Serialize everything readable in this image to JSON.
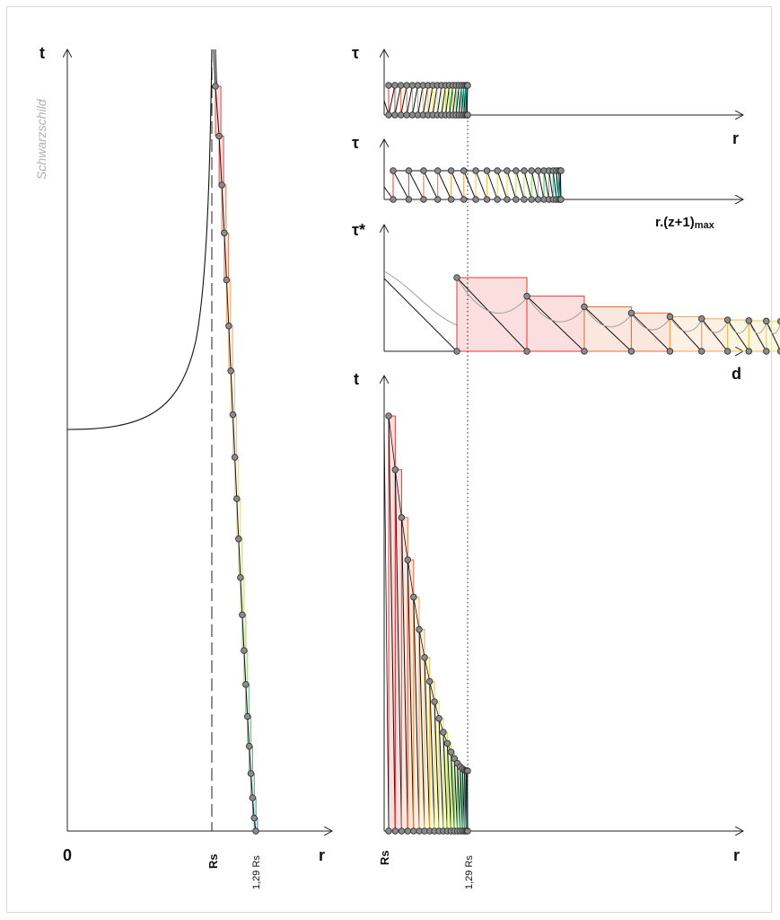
{
  "figure": {
    "schwarzschild_label": "Schwarzschild",
    "left_panel": {
      "y_axis_label": "t",
      "x_axis_label": "r",
      "origin_label": "0",
      "rs_label": "Rs",
      "r129_label": "1,29 Rs"
    },
    "panel_tau_r": {
      "y_axis_label": "τ",
      "x_axis_label": "r"
    },
    "panel_tau_rz": {
      "y_axis_label": "τ",
      "x_axis_label_main": "r.(z+1)",
      "x_axis_label_sub": "max"
    },
    "panel_tau_star_d": {
      "y_axis_label": "τ*",
      "x_axis_label": "d"
    },
    "panel_t_r": {
      "y_axis_label": "t",
      "x_axis_label": "r",
      "rs_label": "Rs",
      "r129_label": "1,29 Rs"
    }
  },
  "colors": {
    "ramp": [
      "#e53935",
      "#ef6c3a",
      "#f4a259",
      "#f2c14e",
      "#e9dd4f",
      "#c5e04e",
      "#8fd24f",
      "#4cc46a",
      "#2fb98a",
      "#27a9a0",
      "#2696a8"
    ],
    "marker_fill": "#8c8c8c",
    "marker_stroke": "#333333",
    "curve": "#111111",
    "grey_curve": "#9a9a9a"
  },
  "chart_data": {
    "type": "diagram",
    "description_series": "stepped light-ray paths near the Schwarzschild radius",
    "steps": 20
  }
}
